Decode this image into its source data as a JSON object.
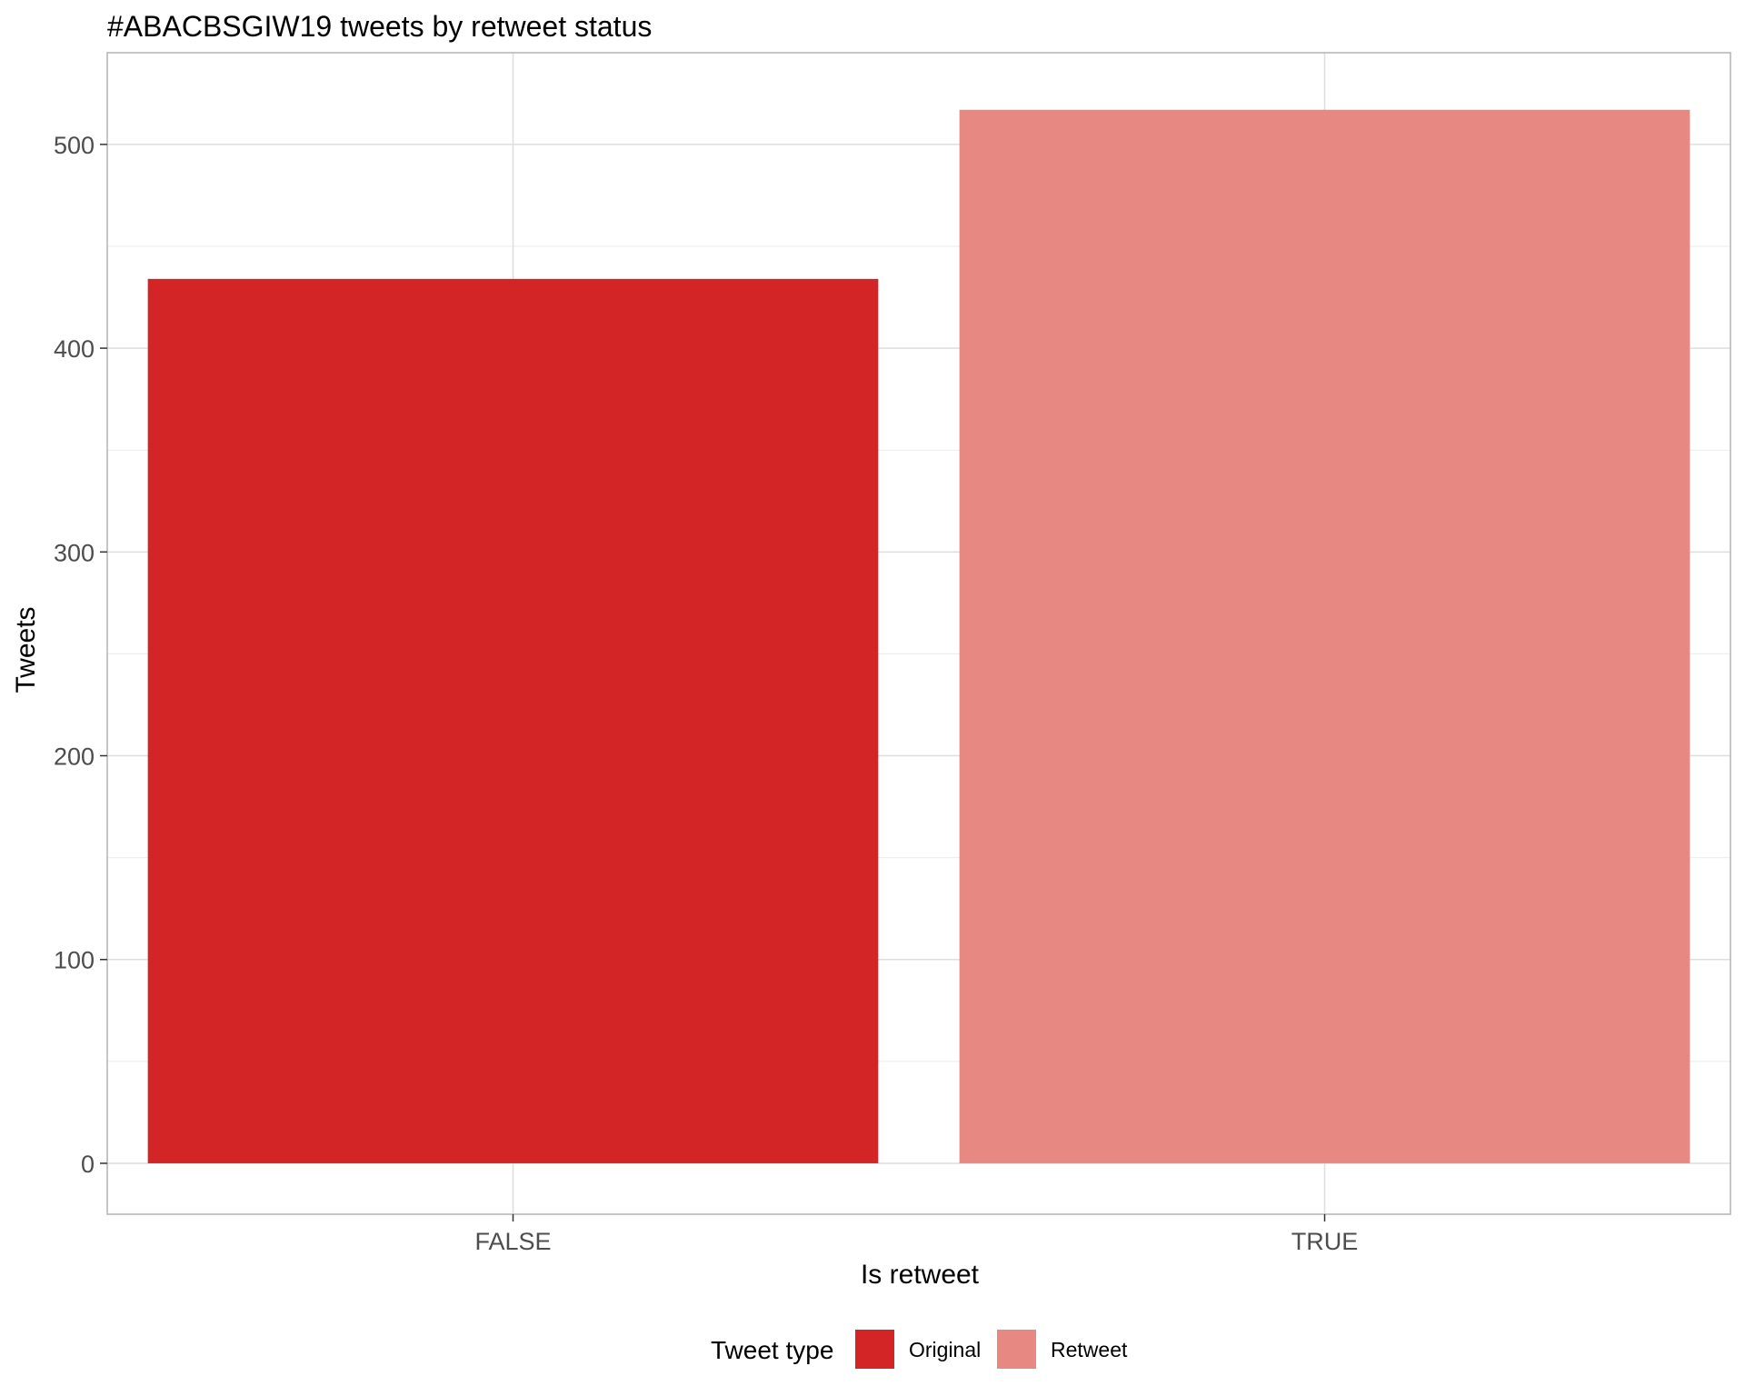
{
  "chart_data": {
    "type": "bar",
    "title": "#ABACBSGIW19 tweets by retweet status",
    "xlabel": "Is retweet",
    "ylabel": "Tweets",
    "categories": [
      "FALSE",
      "TRUE"
    ],
    "values": [
      434,
      517
    ],
    "bar_colors": [
      "#d32426",
      "#e88883"
    ],
    "ylim": [
      -25,
      545
    ],
    "yticks": [
      0,
      100,
      200,
      300,
      400,
      500
    ],
    "ytick_labels": [
      "0",
      "100",
      "200",
      "300",
      "400",
      "500"
    ],
    "grid": true,
    "legend": {
      "title": "Tweet type",
      "position": "bottom",
      "entries": [
        {
          "label": "Original",
          "color": "#d32426"
        },
        {
          "label": "Retweet",
          "color": "#e88883"
        }
      ]
    }
  }
}
